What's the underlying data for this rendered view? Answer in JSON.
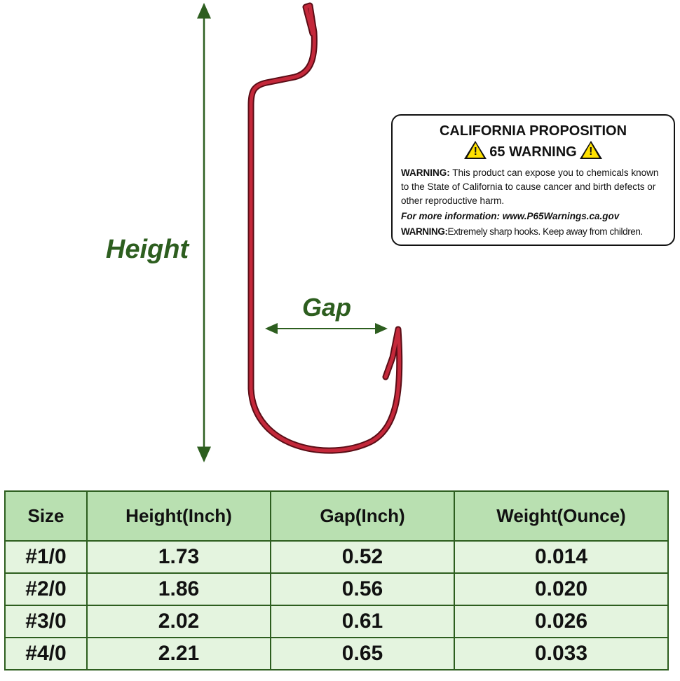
{
  "diagram": {
    "height_label": "Height",
    "gap_label": "Gap"
  },
  "warning": {
    "title_line1": "CALIFORNIA PROPOSITION",
    "title_line2": "65 WARNING",
    "warn_prefix": "WARNING:",
    "warn_text": "This product can expose you to chemicals known to the State of California to cause cancer and birth defects or other reproductive harm.",
    "info": "For more information: www.P65Warnings.ca.gov",
    "warn2_prefix": "WARNING:",
    "warn2_text": "Extremely sharp hooks. Keep away from children."
  },
  "table": {
    "header": [
      "Size",
      "Height(Inch)",
      "Gap(Inch)",
      "Weight(Ounce)"
    ],
    "rows": [
      [
        "#1/0",
        "1.73",
        "0.52",
        "0.014"
      ],
      [
        "#2/0",
        "1.86",
        "0.56",
        "0.020"
      ],
      [
        "#3/0",
        "2.02",
        "0.61",
        "0.026"
      ],
      [
        "#4/0",
        "2.21",
        "0.65",
        "0.033"
      ]
    ]
  }
}
